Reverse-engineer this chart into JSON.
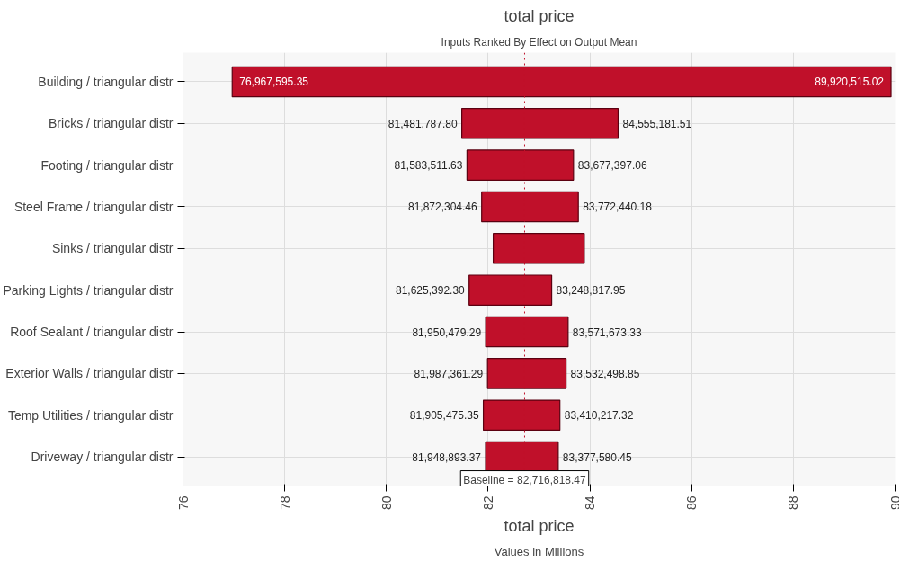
{
  "chart_data": {
    "type": "bar",
    "orientation": "horizontal",
    "title": "total price",
    "subtitle": "Inputs Ranked By Effect on Output Mean",
    "xlabel": "total price",
    "categories": [
      "Building / triangular distr",
      "Bricks / triangular distr",
      "Footing / triangular distr",
      "Steel Frame / triangular distr",
      "Sinks / triangular distr",
      "Parking Lights / triangular distr",
      "Roof Sealant / triangular distr",
      "Exterior Walls / triangular distr",
      "Temp Utilities / triangular distr",
      "Driveway / triangular distr"
    ],
    "base": [
      76.96759535,
      81.4817878,
      81.58351163,
      81.87230446,
      82.1,
      81.6253923,
      81.95047929,
      81.98736129,
      81.90547535,
      81.94889337
    ],
    "values": [
      12.95291967,
      3.07339371,
      2.09388543,
      1.90013572,
      1.79,
      1.62342565,
      1.62119404,
      1.54513756,
      1.50474197,
      1.42868708
    ],
    "color": "#c0102a",
    "xlim": [
      76,
      90
    ],
    "xticks": [
      76,
      78,
      80,
      82,
      84,
      86,
      88,
      90
    ],
    "grid": true,
    "ref_lines": [
      {
        "axis": "x",
        "value": 82.71681847,
        "label": "Baseline = 82,716,818.47",
        "color": "#c0102a",
        "line_style": "dotted"
      }
    ],
    "annotations": [
      "Values in Millions",
      {
        "text": "76,967,595.35",
        "x": 76.96759535,
        "y": "Building / triangular distr"
      },
      {
        "text": "89,920,515.02",
        "x": 89.92051502,
        "y": "Building / triangular distr"
      },
      {
        "text": "81,481,787.80",
        "x": 81.4817878,
        "y": "Bricks / triangular distr"
      },
      {
        "text": "84,555,181.51",
        "x": 84.55518151,
        "y": "Bricks / triangular distr"
      },
      {
        "text": "81,583,511.63",
        "x": 81.58351163,
        "y": "Footing / triangular distr"
      },
      {
        "text": "83,677,397.06",
        "x": 83.67739706,
        "y": "Footing / triangular distr"
      },
      {
        "text": "81,872,304.46",
        "x": 81.87230446,
        "y": "Steel Frame / triangular distr"
      },
      {
        "text": "83,772,440.18",
        "x": 83.77244018,
        "y": "Steel Frame / triangular distr"
      },
      {
        "text": "81,625,392.30",
        "x": 81.6253923,
        "y": "Parking Lights / triangular distr"
      },
      {
        "text": "83,248,817.95",
        "x": 83.24881795,
        "y": "Parking Lights / triangular distr"
      },
      {
        "text": "81,950,479.29",
        "x": 81.95047929,
        "y": "Roof Sealant / triangular distr"
      },
      {
        "text": "83,571,673.33",
        "x": 83.57167333,
        "y": "Roof Sealant / triangular distr"
      },
      {
        "text": "81,987,361.29",
        "x": 81.98736129,
        "y": "Exterior Walls / triangular distr"
      },
      {
        "text": "83,532,498.85",
        "x": 83.53249885,
        "y": "Exterior Walls / triangular distr"
      },
      {
        "text": "81,905,475.35",
        "x": 81.90547535,
        "y": "Temp Utilities / triangular distr"
      },
      {
        "text": "83,410,217.32",
        "x": 83.41021732,
        "y": "Temp Utilities / triangular distr"
      },
      {
        "text": "81,948,893.37",
        "x": 81.94889337,
        "y": "Driveway / triangular distr"
      },
      {
        "text": "83,377,580.45",
        "x": 83.37758045,
        "y": "Driveway / triangular distr"
      }
    ]
  }
}
